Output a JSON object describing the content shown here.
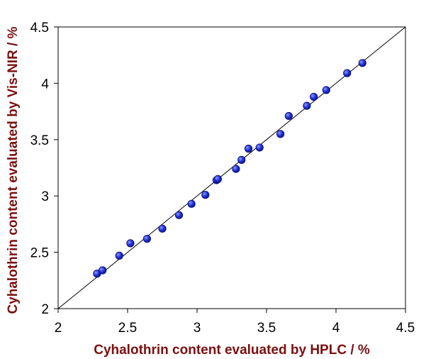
{
  "chart_data": {
    "type": "scatter",
    "title": "",
    "xlabel": "Cyhalothrin content evaluated by HPLC / %",
    "ylabel": "Cyhalothrin content evaluated by Vis-NIR / %",
    "xlim": [
      2,
      4.5
    ],
    "ylim": [
      2,
      4.5
    ],
    "x_ticks": [
      "2",
      "2.5",
      "3",
      "3.5",
      "4",
      "4.5"
    ],
    "y_ticks": [
      "2",
      "2.5",
      "3",
      "3.5",
      "4",
      "4.5"
    ],
    "grid": false,
    "legend": "none",
    "reference_line": "y = x",
    "series": [
      {
        "points": [
          [
            2.28,
            2.31
          ],
          [
            2.32,
            2.34
          ],
          [
            2.44,
            2.47
          ],
          [
            2.52,
            2.58
          ],
          [
            2.64,
            2.62
          ],
          [
            2.75,
            2.71
          ],
          [
            2.87,
            2.83
          ],
          [
            2.96,
            2.93
          ],
          [
            3.06,
            3.01
          ],
          [
            3.14,
            3.14
          ],
          [
            3.15,
            3.15
          ],
          [
            3.28,
            3.24
          ],
          [
            3.32,
            3.32
          ],
          [
            3.37,
            3.42
          ],
          [
            3.45,
            3.43
          ],
          [
            3.6,
            3.55
          ],
          [
            3.66,
            3.71
          ],
          [
            3.79,
            3.8
          ],
          [
            3.84,
            3.88
          ],
          [
            3.93,
            3.94
          ],
          [
            4.08,
            4.09
          ],
          [
            4.19,
            4.18
          ]
        ]
      }
    ],
    "colors": {
      "marker_fill": "#1f2fd6",
      "marker_stroke": "#0a0f6e",
      "axis_title": "#7a1010",
      "frame": "#000000"
    }
  }
}
